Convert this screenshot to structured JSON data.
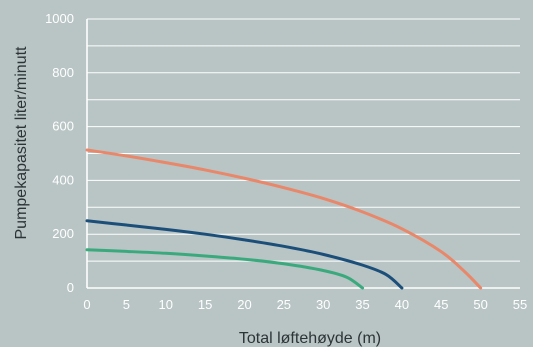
{
  "chart_data": {
    "type": "line",
    "xlabel": "Total løftehøyde (m)",
    "ylabel": "Pumpekapasitet liter/minutt",
    "xlim": [
      0,
      55
    ],
    "ylim": [
      0,
      1000
    ],
    "xticks": [
      0,
      5,
      10,
      15,
      20,
      25,
      30,
      35,
      40,
      45,
      50,
      55
    ],
    "yticks": [
      0,
      200,
      400,
      600,
      800,
      1000
    ],
    "grid": "horizontal",
    "legend": "none",
    "colors": {
      "background": "#b9c4c4",
      "grid": "#ffffff",
      "axis_label": "#2c3437"
    },
    "series": [
      {
        "color": "#e8876a",
        "x": [
          0,
          5,
          10,
          15,
          20,
          25,
          30,
          35,
          40,
          45,
          48,
          50
        ],
        "y": [
          513,
          491,
          466,
          439,
          408,
          373,
          333,
          283,
          220,
          135,
          60,
          0
        ]
      },
      {
        "color": "#1b4f7a",
        "x": [
          0,
          5,
          10,
          15,
          20,
          25,
          30,
          35,
          38,
          40
        ],
        "y": [
          250,
          234,
          218,
          200,
          179,
          155,
          125,
          85,
          50,
          0
        ]
      },
      {
        "color": "#3aaa7e",
        "x": [
          0,
          5,
          10,
          15,
          20,
          25,
          30,
          33,
          35
        ],
        "y": [
          142,
          136,
          129,
          119,
          107,
          90,
          65,
          40,
          0
        ]
      }
    ]
  }
}
